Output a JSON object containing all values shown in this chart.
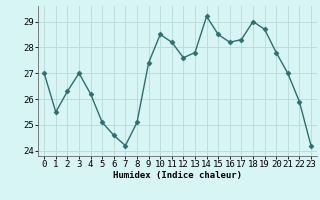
{
  "x": [
    0,
    1,
    2,
    3,
    4,
    5,
    6,
    7,
    8,
    9,
    10,
    11,
    12,
    13,
    14,
    15,
    16,
    17,
    18,
    19,
    20,
    21,
    22,
    23
  ],
  "y": [
    27.0,
    25.5,
    26.3,
    27.0,
    26.2,
    25.1,
    24.6,
    24.2,
    25.1,
    27.4,
    28.5,
    28.2,
    27.6,
    27.8,
    29.2,
    28.5,
    28.2,
    28.3,
    29.0,
    28.7,
    27.8,
    27.0,
    25.9,
    24.2
  ],
  "line_color": "#2d6e6e",
  "marker": "D",
  "marker_size": 2.5,
  "bg_color": "#d8f5f5",
  "grid_color": "#b8d8d8",
  "xlabel": "Humidex (Indice chaleur)",
  "ylim": [
    23.8,
    29.6
  ],
  "xlim": [
    -0.5,
    23.5
  ],
  "yticks": [
    24,
    25,
    26,
    27,
    28,
    29
  ],
  "xticks": [
    0,
    1,
    2,
    3,
    4,
    5,
    6,
    7,
    8,
    9,
    10,
    11,
    12,
    13,
    14,
    15,
    16,
    17,
    18,
    19,
    20,
    21,
    22,
    23
  ],
  "xlabel_fontsize": 6.5,
  "tick_fontsize": 6.5,
  "linewidth": 1.0
}
